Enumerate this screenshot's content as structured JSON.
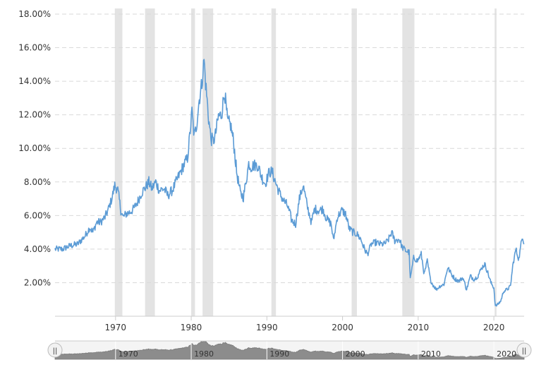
{
  "chart_data": {
    "type": "line",
    "title": "",
    "xlabel": "",
    "ylabel": "",
    "x_range": [
      1962.0,
      2024.0
    ],
    "ylim": [
      0,
      18
    ],
    "y_ticks": [
      {
        "value": 2,
        "label": "2.00%"
      },
      {
        "value": 4,
        "label": "4.00%"
      },
      {
        "value": 6,
        "label": "6.00%"
      },
      {
        "value": 8,
        "label": "8.00%"
      },
      {
        "value": 10,
        "label": "10.00%"
      },
      {
        "value": 12,
        "label": "12.00%"
      },
      {
        "value": 14,
        "label": "14.00%"
      },
      {
        "value": 16,
        "label": "16.00%"
      },
      {
        "value": 18,
        "label": "18.00%"
      }
    ],
    "x_ticks": [
      {
        "value": 1970,
        "label": "1970"
      },
      {
        "value": 1980,
        "label": "1980"
      },
      {
        "value": 1990,
        "label": "1990"
      },
      {
        "value": 2000,
        "label": "2000"
      },
      {
        "value": 2010,
        "label": "2010"
      },
      {
        "value": 2020,
        "label": "2020"
      }
    ],
    "recessions": [
      [
        1969.9,
        1970.9
      ],
      [
        1973.9,
        1975.2
      ],
      [
        1980.0,
        1980.5
      ],
      [
        1981.5,
        1982.9
      ],
      [
        1990.6,
        1991.2
      ],
      [
        2001.2,
        2001.9
      ],
      [
        2007.9,
        2009.5
      ],
      [
        2020.1,
        2020.35
      ]
    ],
    "grid": true,
    "series": [
      {
        "color": "#5b9bd5",
        "x": [
          1962.0,
          1963.0,
          1964.0,
          1965.0,
          1966.0,
          1966.6,
          1967.0,
          1967.5,
          1968.0,
          1968.6,
          1969.0,
          1969.5,
          1969.9,
          1970.3,
          1970.7,
          1971.0,
          1971.4,
          1971.9,
          1972.4,
          1972.9,
          1973.5,
          1974.0,
          1974.4,
          1974.8,
          1975.3,
          1975.8,
          1976.4,
          1976.9,
          1977.5,
          1978.0,
          1978.6,
          1979.0,
          1979.5,
          1979.8,
          1980.1,
          1980.4,
          1980.7,
          1981.0,
          1981.4,
          1981.7,
          1981.9,
          1982.3,
          1982.6,
          1982.9,
          1983.2,
          1983.6,
          1984.0,
          1984.4,
          1984.8,
          1985.2,
          1985.6,
          1986.0,
          1986.5,
          1986.9,
          1987.3,
          1987.6,
          1987.9,
          1988.3,
          1988.8,
          1989.3,
          1989.8,
          1990.3,
          1990.7,
          1991.2,
          1991.7,
          1992.2,
          1992.7,
          1993.3,
          1993.8,
          1994.3,
          1994.8,
          1995.3,
          1995.9,
          1996.3,
          1996.9,
          1997.4,
          1997.9,
          1998.5,
          1998.8,
          1999.3,
          1999.9,
          2000.4,
          2000.9,
          2001.4,
          2001.9,
          2002.4,
          2002.9,
          2003.3,
          2003.8,
          2004.4,
          2004.9,
          2005.5,
          2006.0,
          2006.5,
          2006.9,
          2007.5,
          2007.9,
          2008.4,
          2008.8,
          2008.95,
          2009.4,
          2009.9,
          2010.4,
          2010.8,
          2011.2,
          2011.6,
          2011.9,
          2012.4,
          2012.9,
          2013.4,
          2013.9,
          2014.4,
          2014.9,
          2015.4,
          2015.9,
          2016.4,
          2016.9,
          2017.4,
          2017.9,
          2018.4,
          2018.8,
          2019.2,
          2019.6,
          2020.0,
          2020.2,
          2020.5,
          2020.9,
          2021.3,
          2021.8,
          2022.2,
          2022.5,
          2022.9,
          2023.3,
          2023.6,
          2023.8,
          2024.0
        ],
        "y": [
          4.0,
          4.0,
          4.2,
          4.3,
          4.8,
          5.3,
          5.0,
          5.6,
          5.6,
          5.9,
          6.3,
          7.0,
          7.8,
          7.5,
          6.3,
          5.9,
          6.1,
          6.2,
          6.4,
          6.8,
          7.4,
          7.7,
          8.0,
          7.6,
          8.0,
          7.5,
          7.6,
          7.2,
          7.5,
          8.0,
          8.6,
          9.0,
          9.4,
          10.7,
          12.2,
          10.7,
          11.4,
          12.7,
          13.9,
          15.3,
          13.9,
          11.8,
          10.6,
          10.4,
          10.8,
          11.9,
          12.0,
          13.4,
          11.6,
          11.4,
          10.4,
          8.6,
          7.3,
          7.1,
          8.2,
          9.1,
          8.9,
          9.0,
          9.0,
          8.3,
          7.9,
          8.6,
          8.6,
          7.9,
          7.3,
          6.9,
          6.6,
          5.7,
          5.5,
          7.0,
          7.8,
          6.6,
          5.6,
          6.4,
          6.3,
          6.4,
          5.8,
          5.5,
          4.5,
          5.9,
          6.3,
          6.1,
          5.2,
          5.0,
          4.9,
          4.6,
          4.0,
          3.7,
          4.3,
          4.4,
          4.3,
          4.3,
          4.5,
          5.0,
          4.5,
          4.6,
          4.1,
          3.9,
          3.8,
          2.2,
          3.5,
          3.3,
          3.7,
          2.5,
          3.3,
          2.2,
          1.9,
          1.6,
          1.8,
          1.9,
          2.9,
          2.5,
          2.2,
          2.1,
          2.3,
          1.6,
          2.4,
          2.2,
          2.4,
          2.9,
          3.1,
          2.6,
          2.0,
          1.7,
          0.6,
          0.7,
          0.9,
          1.5,
          1.6,
          1.8,
          3.0,
          4.0,
          3.4,
          4.3,
          4.8,
          4.3
        ]
      }
    ]
  },
  "navigator": {
    "left_handle_glyph": "||",
    "right_handle_glyph": "||"
  }
}
